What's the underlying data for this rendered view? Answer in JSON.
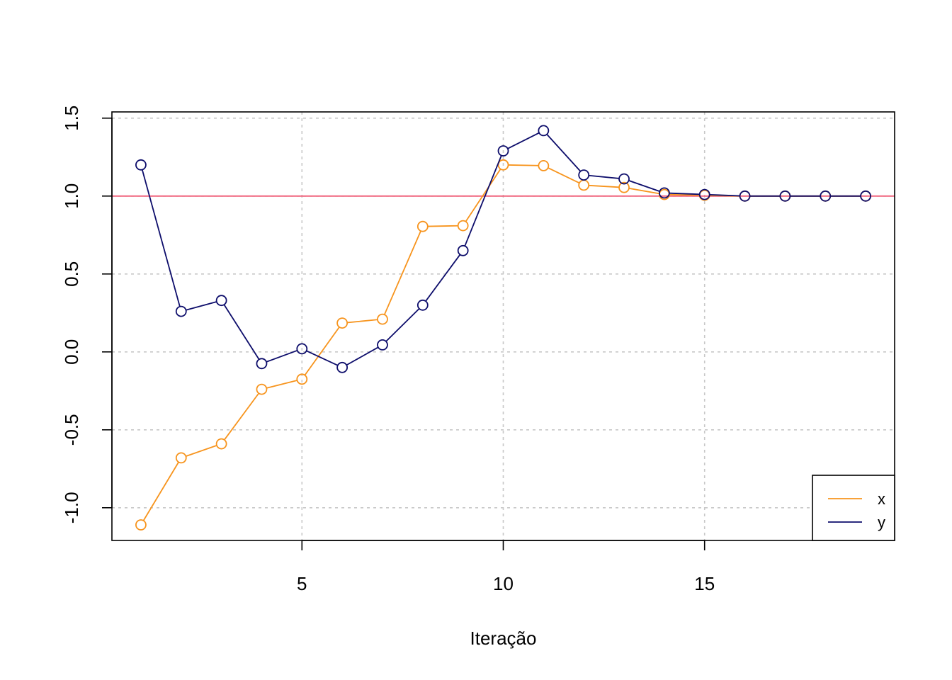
{
  "chart_data": {
    "type": "line",
    "title": "",
    "xlabel": "Iteração",
    "ylabel": "",
    "xlim": [
      0.28,
      19.72
    ],
    "ylim": [
      -1.21,
      1.54
    ],
    "x_ticks": [
      5,
      10,
      15
    ],
    "x_tick_labels": [
      "5",
      "10",
      "15"
    ],
    "y_ticks": [
      -1.0,
      -0.5,
      0.0,
      0.5,
      1.0,
      1.5
    ],
    "y_tick_labels": [
      "-1.0",
      "-0.5",
      "0.0",
      "0.5",
      "1.0",
      "1.5"
    ],
    "grid": true,
    "legend_position": "bottom-right",
    "reference_line": {
      "y": 1.0,
      "color": "#F0607A"
    },
    "x": [
      1,
      2,
      3,
      4,
      5,
      6,
      7,
      8,
      9,
      10,
      11,
      12,
      13,
      14,
      15,
      16,
      17,
      18,
      19
    ],
    "series": [
      {
        "name": "x",
        "color": "#F7941D",
        "values": [
          -1.11,
          -0.68,
          -0.59,
          -0.24,
          -0.175,
          0.185,
          0.21,
          0.805,
          0.81,
          1.2,
          1.195,
          1.07,
          1.055,
          1.01,
          1.005,
          1.0,
          1.0,
          1.0,
          1.0
        ]
      },
      {
        "name": "y",
        "color": "#0D0D6B",
        "values": [
          1.2,
          0.26,
          0.33,
          -0.075,
          0.02,
          -0.1,
          0.045,
          0.3,
          0.65,
          1.29,
          1.42,
          1.135,
          1.11,
          1.02,
          1.01,
          1.0,
          1.0,
          1.0,
          1.0
        ]
      }
    ]
  }
}
